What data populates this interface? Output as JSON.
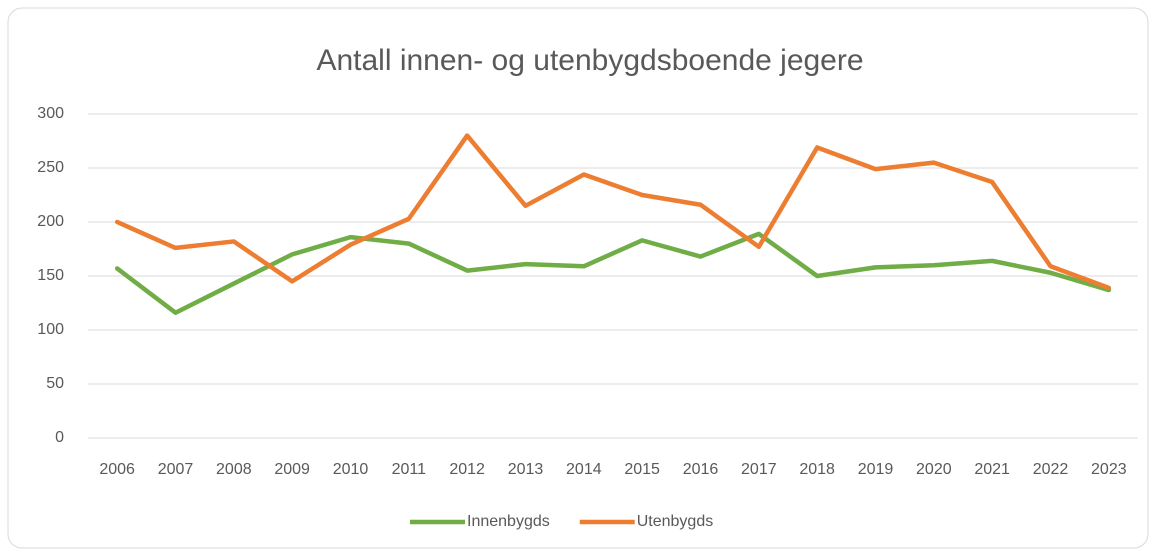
{
  "chart_data": {
    "type": "line",
    "title": "Antall innen- og utenbygdsboende jegere",
    "categories": [
      "2006",
      "2007",
      "2008",
      "2009",
      "2010",
      "2011",
      "2012",
      "2013",
      "2014",
      "2015",
      "2016",
      "2017",
      "2018",
      "2019",
      "2020",
      "2021",
      "2022",
      "2023"
    ],
    "series": [
      {
        "name": "Innenbygds",
        "color": "#70ad47",
        "values": [
          157,
          116,
          143,
          170,
          186,
          180,
          155,
          161,
          159,
          183,
          168,
          189,
          150,
          158,
          160,
          164,
          153,
          137
        ]
      },
      {
        "name": "Utenbygds",
        "color": "#ed7d31",
        "values": [
          200,
          176,
          182,
          145,
          179,
          203,
          280,
          215,
          244,
          225,
          216,
          177,
          269,
          249,
          255,
          237,
          159,
          139
        ]
      }
    ],
    "ylim": [
      0,
      300
    ],
    "yticks": [
      0,
      50,
      100,
      150,
      200,
      250,
      300
    ],
    "grid": true,
    "legend": "bottom"
  }
}
